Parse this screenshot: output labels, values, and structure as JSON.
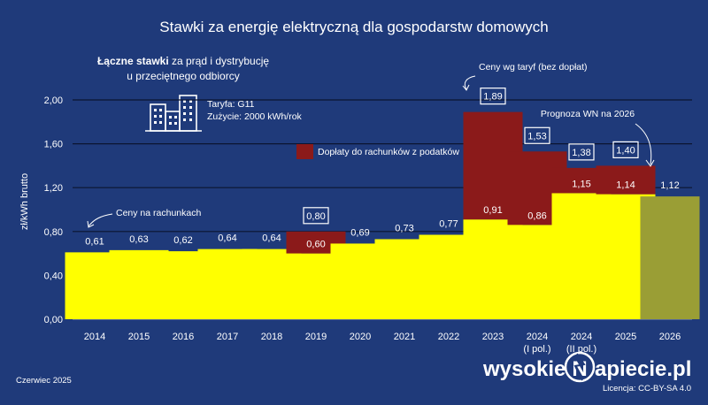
{
  "chart_data": {
    "type": "bar",
    "title": "Stawki za energię elektryczną dla gospodarstw domowych",
    "subtitle_bold": "Łączne stawki",
    "subtitle_rest": " za prąd i dystrybucję",
    "subtitle_line2": "u przeciętnego odbiorcy",
    "tariff_line": "Taryfa: G11",
    "usage_line": "Zużycie: 2000 kWh/rok",
    "ylabel": "zł/kWh  brutto",
    "xlabel": "",
    "ylim": [
      0,
      2
    ],
    "yticks": [
      "0,00",
      "0,40",
      "0,80",
      "1,20",
      "1,60",
      "2,00"
    ],
    "ytick_values": [
      0,
      0.4,
      0.8,
      1.2,
      1.6,
      2.0
    ],
    "grid": true,
    "categories": [
      {
        "year": "2014",
        "sub": ""
      },
      {
        "year": "2015",
        "sub": ""
      },
      {
        "year": "2016",
        "sub": ""
      },
      {
        "year": "2017",
        "sub": ""
      },
      {
        "year": "2018",
        "sub": ""
      },
      {
        "year": "2019",
        "sub": ""
      },
      {
        "year": "2020",
        "sub": ""
      },
      {
        "year": "2021",
        "sub": ""
      },
      {
        "year": "2022",
        "sub": ""
      },
      {
        "year": "2023",
        "sub": ""
      },
      {
        "year": "2024",
        "sub": "(I pol.)"
      },
      {
        "year": "2024",
        "sub": "(II pol.)"
      },
      {
        "year": "2025",
        "sub": ""
      },
      {
        "year": "2026",
        "sub": ""
      }
    ],
    "series": [
      {
        "name": "Ceny na rachunkach",
        "color": "#ffff00",
        "values": [
          0.61,
          0.63,
          0.62,
          0.64,
          0.64,
          0.6,
          0.69,
          0.73,
          0.77,
          0.91,
          0.86,
          1.15,
          1.14,
          null
        ],
        "labels": [
          "0,61",
          "0,63",
          "0,62",
          "0,64",
          "0,64",
          "0,60",
          "0,69",
          "0,73",
          "0,77",
          "0,91",
          "0,86",
          "1,15",
          "1,14",
          ""
        ]
      },
      {
        "name": "Dopłaty do rachunków z podatków",
        "color": "#8b1a1a",
        "values": [
          null,
          null,
          null,
          null,
          null,
          0.2,
          null,
          null,
          null,
          0.98,
          0.67,
          0.23,
          0.26,
          null
        ]
      },
      {
        "name": "Prognoza WN na 2026",
        "color": "#9a9e35",
        "values": [
          null,
          null,
          null,
          null,
          null,
          null,
          null,
          null,
          null,
          null,
          null,
          null,
          null,
          1.12
        ],
        "labels": [
          "",
          "",
          "",
          "",
          "",
          "",
          "",
          "",
          "",
          "",
          "",
          "",
          "",
          "1,12"
        ]
      }
    ],
    "tariff_totals": [
      {
        "index": 5,
        "label": "0,80",
        "value": 0.8
      },
      {
        "index": 9,
        "label": "1,89",
        "value": 1.89
      },
      {
        "index": 10,
        "label": "1,53",
        "value": 1.53
      },
      {
        "index": 11,
        "label": "1,38",
        "value": 1.38
      },
      {
        "index": 12,
        "label": "1,40",
        "value": 1.4
      }
    ],
    "annotations": {
      "tariff_note": "Ceny wg taryf (bez dopłat)",
      "bills_note": "Ceny na rachunkach",
      "subsidy_legend": "Dopłaty do rachunków z podatków",
      "forecast_note": "Prognoza WN na 2026"
    },
    "colors": {
      "background": "#1f3a7a",
      "bills": "#ffff00",
      "subsidy": "#8b1a1a",
      "forecast": "#9a9e35"
    }
  },
  "footer": {
    "date": "Czerwiec  2025",
    "brand_left": "wysokie",
    "brand_n": "N",
    "brand_right": "apiecie.pl",
    "license": "Licencja: CC-BY-SA 4.0"
  }
}
